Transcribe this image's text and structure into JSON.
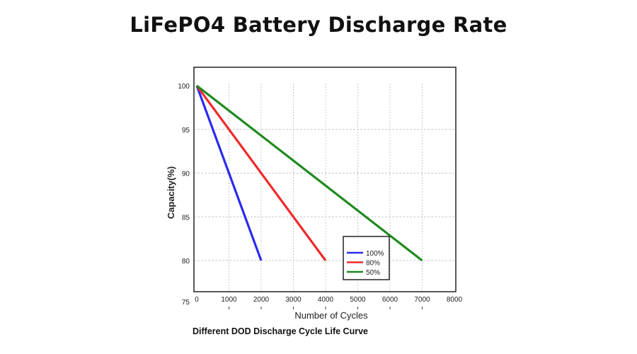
{
  "header": {
    "title": "LiFePO4 Battery Discharge Rate"
  },
  "chart_data": {
    "type": "line",
    "title": "LiFePO4 Battery Discharge Rate",
    "caption": "Different DOD Discharge Cycle Life Curve",
    "xlabel": "Number of Cycles",
    "ylabel": "Capacity(%)",
    "xlim": [
      0,
      8000
    ],
    "ylim": [
      75,
      100
    ],
    "xticks": [
      0,
      1000,
      2000,
      3000,
      4000,
      5000,
      6000,
      7000,
      8000
    ],
    "yticks": [
      75,
      80,
      85,
      90,
      95,
      100
    ],
    "grid": true,
    "legend_position": "bottom-right",
    "series": [
      {
        "name": "100%",
        "color": "#2a2af0",
        "x": [
          0,
          2000
        ],
        "y": [
          100,
          80
        ]
      },
      {
        "name": "80%",
        "color": "#f02a2a",
        "x": [
          0,
          4000
        ],
        "y": [
          100,
          80
        ]
      },
      {
        "name": "50%",
        "color": "#1e8a1e",
        "x": [
          0,
          7000
        ],
        "y": [
          100,
          80
        ]
      }
    ]
  }
}
